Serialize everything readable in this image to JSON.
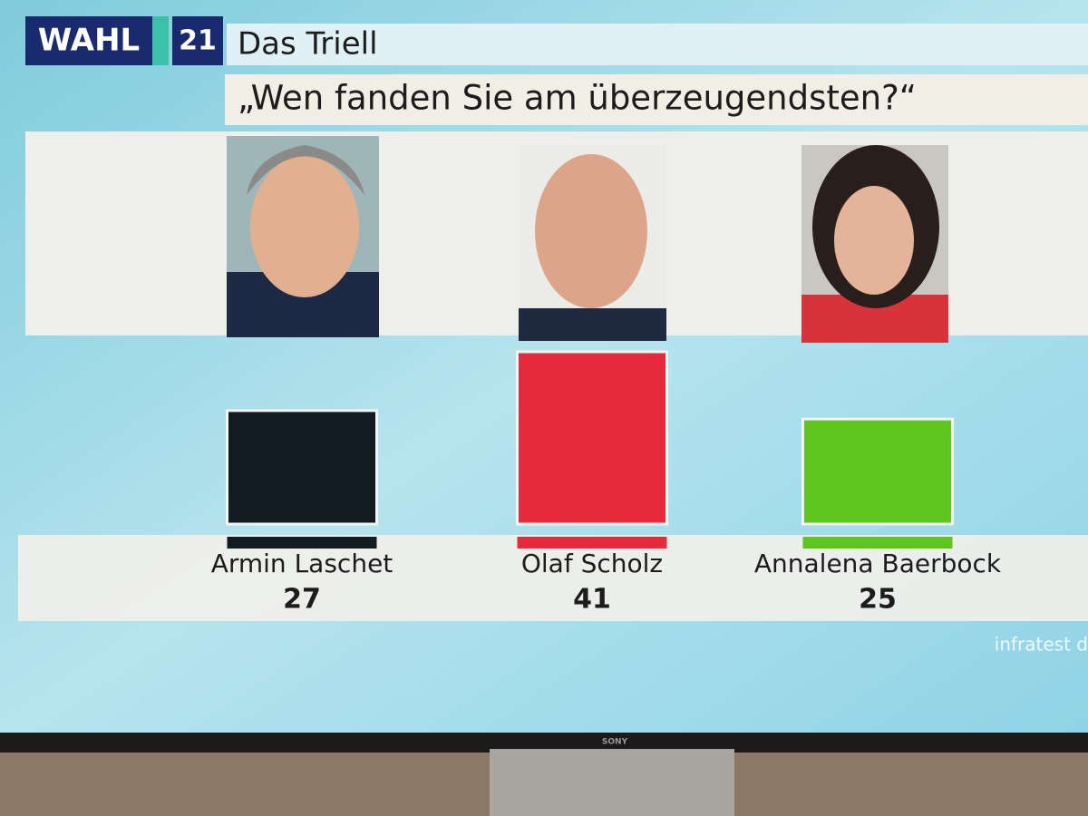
{
  "chart_data": {
    "type": "bar",
    "logo": "WAHL",
    "logo_year": "21",
    "program": "Das Triell",
    "title": "„Wen fanden Sie am überzeugendsten?“",
    "categories": [
      "Armin Laschet",
      "Olaf Scholz",
      "Annalena Baerbock"
    ],
    "values": [
      27,
      41,
      25
    ],
    "colors": [
      "#121a22",
      "#e62a3e",
      "#5ec41e"
    ],
    "source": "infratest d",
    "brand": "SONY"
  }
}
